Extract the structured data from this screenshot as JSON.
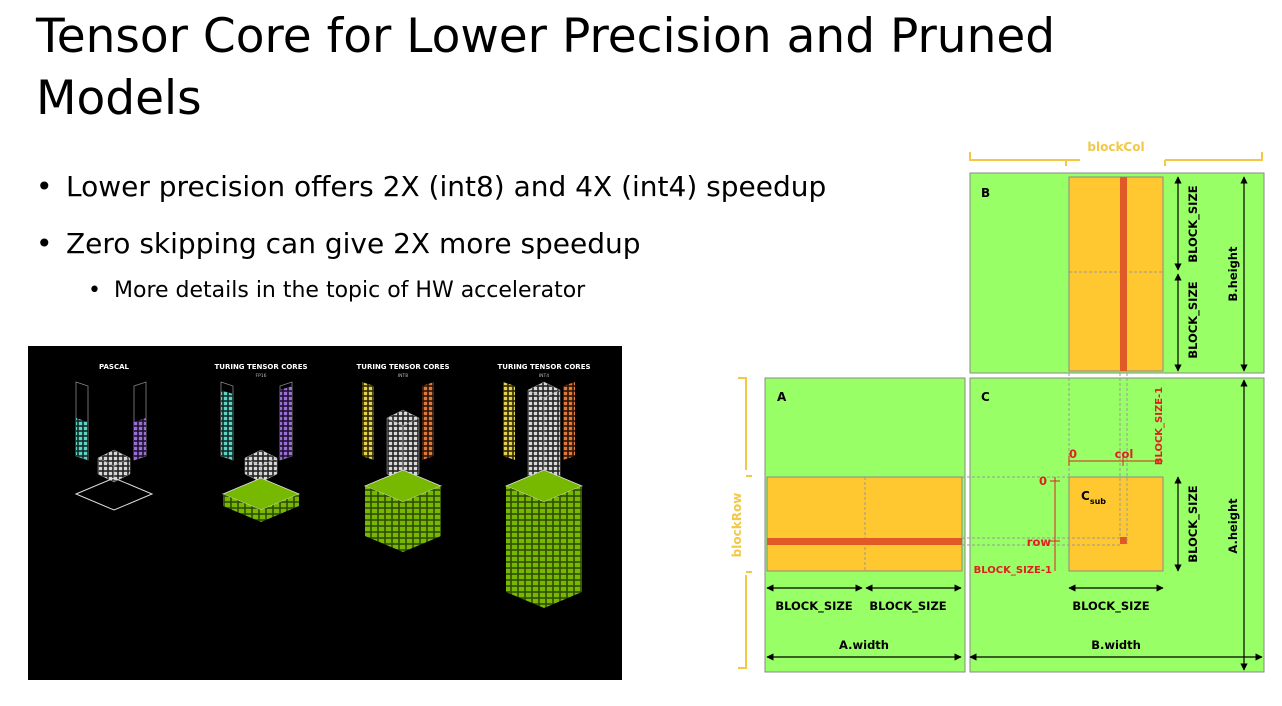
{
  "slide": {
    "title": "Tensor Core for Lower Precision and Pruned Models",
    "bullets": [
      {
        "level": 1,
        "text": "Lower precision offers 2X (int8) and 4X (int4) speedup"
      },
      {
        "level": 1,
        "text": "Zero skipping can give 2X more speedup"
      },
      {
        "level": 2,
        "text": "More details in the topic of HW accelerator"
      }
    ],
    "bullet_glyph": "•"
  },
  "tensor_core_image": {
    "columns": [
      {
        "title": "PASCAL",
        "subtitle": ""
      },
      {
        "title": "TURING TENSOR CORES",
        "subtitle": "FP16"
      },
      {
        "title": "TURING TENSOR CORES",
        "subtitle": "INT8"
      },
      {
        "title": "TURING TENSOR CORES",
        "subtitle": "INT4"
      }
    ],
    "stack_levels": [
      0,
      1,
      2,
      4
    ],
    "colors": {
      "background": "#000000",
      "green": "#76b900",
      "cyan": "#5fd3c4",
      "purple": "#9b6fd6",
      "yellow": "#e6d24a",
      "orange": "#e07a3a"
    }
  },
  "matrix_diagram": {
    "labels": {
      "block_col": "blockCol",
      "block_row": "blockRow",
      "matrix_a": "A",
      "matrix_b": "B",
      "matrix_c": "C",
      "c_sub": "C",
      "c_sub_suffix": "sub",
      "block_size": "BLOCK_SIZE",
      "block_size_minus_1": "BLOCK_SIZE-1",
      "a_width": "A.width",
      "b_width": "B.width",
      "a_height": "A.height",
      "b_height": "B.height",
      "zero": "0",
      "col": "col",
      "row": "row"
    },
    "colors": {
      "green": "#99ff66",
      "orange": "#ffc830",
      "red": "#e05a28",
      "bracket": "#f2c844",
      "label_red": "#e02020"
    }
  }
}
